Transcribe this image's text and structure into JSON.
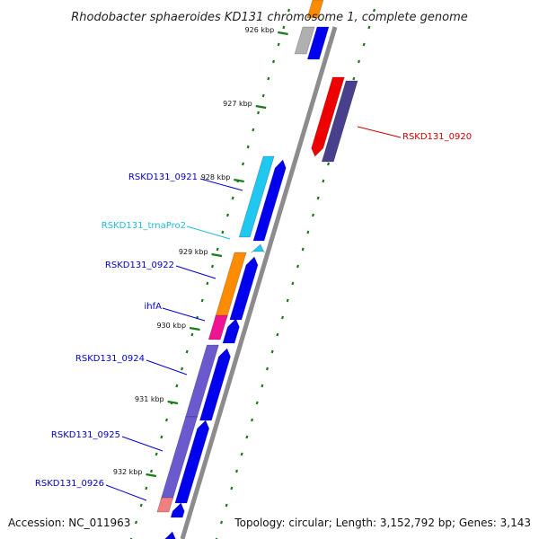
{
  "title": "Rhodobacter sphaeroides KD131 chromosome 1, complete genome",
  "footer": {
    "accession": "Accession: NC_011963",
    "summary": "Topology: circular; Length: 3,152,792 bp; Genes: 3,143"
  },
  "scale_labels": [
    "926 kbp",
    "927 kbp",
    "928 kbp",
    "929 kbp",
    "930 kbp",
    "931 kbp",
    "932 kbp"
  ],
  "genes": [
    {
      "label": "RSKD131_0920",
      "color": "#cc0000"
    },
    {
      "label": "RSKD131_0921",
      "color": "#0000cc"
    },
    {
      "label": "RSKD131_trnaPro2",
      "color": "#22bbdd"
    },
    {
      "label": "RSKD131_0922",
      "color": "#0000cc"
    },
    {
      "label": "ihfA",
      "color": "#0000cc"
    },
    {
      "label": "RSKD131_0924",
      "color": "#0000cc"
    },
    {
      "label": "RSKD131_0925",
      "color": "#0000cc"
    },
    {
      "label": "RSKD131_0926",
      "color": "#0000cc"
    }
  ],
  "colors": {
    "backbone": "#8c8c8c",
    "tick": "#1a7a1a",
    "cds": "#0000ee",
    "cds_reverse": "#ee0000",
    "cog_purple": "#6a5acd",
    "cog_orange": "#ff8c00",
    "cog_cyan": "#1ec8f0",
    "cog_pink": "#ee1493",
    "cog_salmon": "#f08080",
    "cog_gray": "#b0b0b0",
    "cog_dark_purple": "#48408c"
  }
}
